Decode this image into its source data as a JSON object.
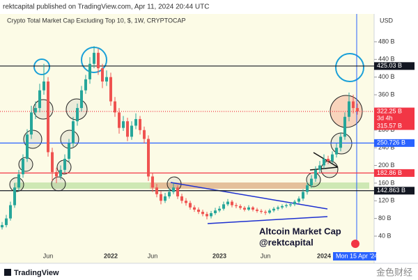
{
  "header": {
    "publisher": "rektcapital published on TradingView.com, Apr 11, 2024 20:44 UTC",
    "logo": "TradingView",
    "watermark": "金色财经"
  },
  "chart_data": {
    "type": "candlestick",
    "title": "Crypto Total Market Cap Excluding Top 10, $, 1W, CRYPTOCAP",
    "currency": "USD",
    "categories": [
      null,
      null,
      null,
      null,
      null,
      null,
      null,
      null,
      null,
      null,
      null,
      "Jun",
      null,
      null,
      null,
      null,
      null,
      null,
      null,
      null,
      null,
      null,
      null,
      null,
      null,
      null,
      "2022",
      null,
      null,
      null,
      null,
      null,
      null,
      null,
      null,
      null,
      "Jun",
      null,
      null,
      null,
      null,
      null,
      null,
      null,
      null,
      null,
      null,
      null,
      null,
      null,
      null,
      null,
      "2023",
      null,
      null,
      null,
      null,
      null,
      null,
      null,
      null,
      null,
      null,
      "Jun",
      null,
      null,
      null,
      null,
      null,
      null,
      null,
      null,
      null,
      null,
      null,
      null,
      null,
      "2024",
      null,
      null,
      null,
      null,
      null,
      null,
      null,
      null
    ],
    "open": [
      60,
      65,
      80,
      110,
      150,
      180,
      215,
      270,
      320,
      330,
      370,
      390,
      230,
      185,
      175,
      190,
      215,
      250,
      300,
      330,
      370,
      395,
      430,
      455,
      420,
      390,
      400,
      345,
      320,
      285,
      300,
      265,
      290,
      305,
      280,
      260,
      175,
      150,
      135,
      120,
      130,
      140,
      150,
      130,
      120,
      115,
      105,
      100,
      95,
      90,
      85,
      92,
      98,
      102,
      112,
      118,
      110,
      108,
      104,
      100,
      105,
      100,
      97,
      95,
      93,
      98,
      102,
      105,
      108,
      110,
      112,
      118,
      125,
      140,
      155,
      170,
      190,
      200,
      215,
      210,
      225,
      240,
      265,
      310,
      345,
      330
    ],
    "high": [
      72,
      88,
      118,
      160,
      190,
      225,
      282,
      335,
      345,
      385,
      430,
      400,
      240,
      195,
      200,
      225,
      260,
      310,
      340,
      380,
      405,
      445,
      470,
      465,
      430,
      415,
      410,
      355,
      330,
      312,
      308,
      300,
      318,
      312,
      288,
      268,
      182,
      158,
      142,
      138,
      148,
      160,
      155,
      136,
      126,
      120,
      110,
      105,
      100,
      95,
      97,
      104,
      108,
      118,
      124,
      122,
      115,
      112,
      108,
      110,
      108,
      104,
      101,
      99,
      102,
      106,
      109,
      112,
      114,
      116,
      122,
      130,
      146,
      162,
      178,
      198,
      210,
      225,
      222,
      232,
      250,
      275,
      320,
      365,
      360,
      340
    ],
    "low": [
      55,
      60,
      75,
      104,
      142,
      172,
      208,
      260,
      305,
      320,
      360,
      220,
      165,
      160,
      168,
      183,
      208,
      242,
      290,
      322,
      362,
      385,
      420,
      405,
      375,
      380,
      335,
      310,
      272,
      278,
      255,
      258,
      282,
      270,
      250,
      165,
      140,
      128,
      112,
      115,
      125,
      135,
      124,
      114,
      109,
      100,
      95,
      90,
      85,
      78,
      80,
      88,
      94,
      98,
      108,
      105,
      103,
      100,
      96,
      97,
      96,
      93,
      91,
      88,
      90,
      94,
      98,
      101,
      104,
      106,
      108,
      114,
      120,
      134,
      149,
      163,
      182,
      193,
      203,
      205,
      218,
      232,
      258,
      300,
      318,
      315
    ],
    "close": [
      65,
      80,
      110,
      150,
      180,
      215,
      270,
      320,
      330,
      370,
      390,
      230,
      185,
      175,
      190,
      215,
      250,
      300,
      330,
      370,
      395,
      430,
      455,
      420,
      390,
      400,
      345,
      320,
      285,
      300,
      265,
      290,
      305,
      280,
      260,
      175,
      150,
      135,
      120,
      130,
      140,
      150,
      130,
      120,
      115,
      105,
      100,
      95,
      90,
      85,
      92,
      98,
      102,
      112,
      118,
      110,
      108,
      104,
      100,
      105,
      100,
      97,
      95,
      93,
      98,
      102,
      105,
      108,
      110,
      112,
      118,
      125,
      140,
      155,
      170,
      190,
      200,
      215,
      210,
      225,
      240,
      265,
      310,
      345,
      330,
      322.25
    ],
    "up_color": "#26a69a",
    "down_color": "#ef5350",
    "ylim": [
      -21.5,
      543
    ],
    "yticks": [
      {
        "value": 40,
        "label": "40 B"
      },
      {
        "value": 80,
        "label": "80 B"
      },
      {
        "value": 120,
        "label": "120 B"
      },
      {
        "value": 160,
        "label": "160 B"
      },
      {
        "value": 200,
        "label": "200 B"
      },
      {
        "value": 240,
        "label": "240 B"
      },
      {
        "value": 280,
        "label": "280 B"
      },
      {
        "value": 320,
        "label": "320 B"
      },
      {
        "value": 360,
        "label": "360 B"
      },
      {
        "value": 400,
        "label": "400 B"
      },
      {
        "value": 440,
        "label": "440 B"
      },
      {
        "value": 480,
        "label": "480 B"
      }
    ],
    "levels": [
      {
        "value": 425.03,
        "label": "425.03 B",
        "color": "#131722",
        "line": "solid"
      },
      {
        "value": 322.25,
        "label": "322.25 B",
        "sublabel": "3d 4h",
        "color": "#f23645",
        "line": "dotted"
      },
      {
        "value": 315.57,
        "label": "315.57 B",
        "color": "#f23645",
        "line": "none"
      },
      {
        "value": 250.726,
        "label": "250.726 B",
        "color": "#2962ff",
        "line": "solid"
      },
      {
        "value": 182.86,
        "label": "182.86 B",
        "color": "#f23645",
        "line": "solid"
      },
      {
        "value": 142.863,
        "label": "142.863 B",
        "color": "#131722",
        "line": "solid"
      }
    ],
    "annotations": [
      "Altcoin Market Cap",
      "@rektcapital"
    ],
    "cursor_label": "Mon 15 Apr '24"
  }
}
